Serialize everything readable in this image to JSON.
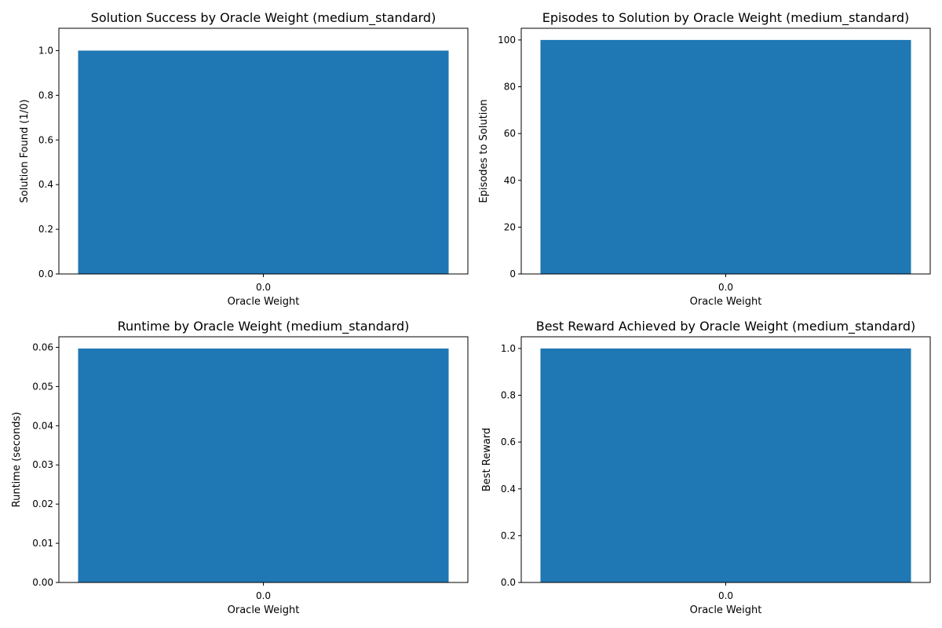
{
  "chart_data": [
    {
      "type": "bar",
      "title": "Solution Success by Oracle Weight (medium_standard)",
      "xlabel": "Oracle Weight",
      "ylabel": "Solution Found (1/0)",
      "categories": [
        "0.0"
      ],
      "values": [
        1.0
      ],
      "ylim": [
        0,
        1.1
      ],
      "yticks": [
        "0.0",
        "0.2",
        "0.4",
        "0.6",
        "0.8",
        "1.0"
      ],
      "ytick_values": [
        0,
        0.2,
        0.4,
        0.6,
        0.8,
        1.0
      ],
      "color": "#1f77b4",
      "grid": false
    },
    {
      "type": "bar",
      "title": "Episodes to Solution by Oracle Weight (medium_standard)",
      "xlabel": "Oracle Weight",
      "ylabel": "Episodes to Solution",
      "categories": [
        "0.0"
      ],
      "values": [
        100
      ],
      "ylim": [
        0,
        105
      ],
      "yticks": [
        "0",
        "20",
        "40",
        "60",
        "80",
        "100"
      ],
      "ytick_values": [
        0,
        20,
        40,
        60,
        80,
        100
      ],
      "color": "#1f77b4",
      "grid": false
    },
    {
      "type": "bar",
      "title": "Runtime by Oracle Weight (medium_standard)",
      "xlabel": "Oracle Weight",
      "ylabel": "Runtime (seconds)",
      "categories": [
        "0.0"
      ],
      "values": [
        0.0597
      ],
      "ylim": [
        0,
        0.0627
      ],
      "yticks": [
        "0.00",
        "0.01",
        "0.02",
        "0.03",
        "0.04",
        "0.05",
        "0.06"
      ],
      "ytick_values": [
        0,
        0.01,
        0.02,
        0.03,
        0.04,
        0.05,
        0.06
      ],
      "color": "#1f77b4",
      "grid": false
    },
    {
      "type": "bar",
      "title": "Best Reward Achieved by Oracle Weight (medium_standard)",
      "xlabel": "Oracle Weight",
      "ylabel": "Best Reward",
      "categories": [
        "0.0"
      ],
      "values": [
        1.0
      ],
      "ylim": [
        0,
        1.05
      ],
      "yticks": [
        "0.0",
        "0.2",
        "0.4",
        "0.6",
        "0.8",
        "1.0"
      ],
      "ytick_values": [
        0,
        0.2,
        0.4,
        0.6,
        0.8,
        1.0
      ],
      "color": "#1f77b4",
      "grid": false
    }
  ]
}
